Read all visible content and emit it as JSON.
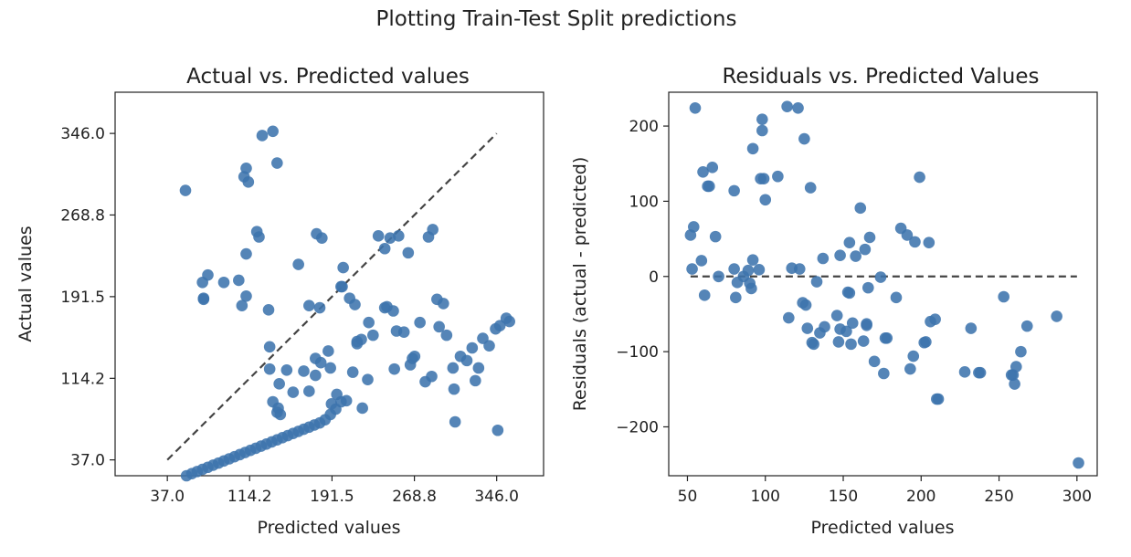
{
  "figure": {
    "suptitle": "Plotting Train-Test Split predictions"
  },
  "colors": {
    "points": "#3e74ad",
    "reference_line": "#444444",
    "axes": "#222222"
  },
  "chart_data": [
    {
      "type": "scatter",
      "title": "Actual vs. Predicted values",
      "xlabel": "Predicted values",
      "ylabel": "Actual values",
      "xlim": [
        -12,
        390
      ],
      "ylim": [
        22,
        385
      ],
      "xticks": [
        37.0,
        114.2,
        191.5,
        268.8,
        346.0
      ],
      "yticks": [
        37.0,
        114.2,
        191.5,
        268.8,
        346.0
      ],
      "xtick_labels": [
        "37.0",
        "114.2",
        "191.5",
        "268.8",
        "346.0"
      ],
      "ytick_labels": [
        "37.0",
        "114.2",
        "191.5",
        "268.8",
        "346.0"
      ],
      "reference_line": {
        "style": "dashed",
        "from": [
          37.0,
          37.0
        ],
        "to": [
          346.0,
          346.0
        ]
      },
      "points": [
        [
          54,
          292
        ],
        [
          70,
          205
        ],
        [
          75,
          212
        ],
        [
          71,
          190
        ],
        [
          71,
          189
        ],
        [
          90,
          205
        ],
        [
          104,
          207
        ],
        [
          107,
          183
        ],
        [
          111,
          192
        ],
        [
          111,
          232
        ],
        [
          123,
          248
        ],
        [
          132,
          179
        ],
        [
          133,
          144
        ],
        [
          133,
          123
        ],
        [
          136,
          92
        ],
        [
          141,
          86
        ],
        [
          143,
          80
        ],
        [
          140,
          82
        ],
        [
          109,
          305
        ],
        [
          113,
          300
        ],
        [
          111,
          313
        ],
        [
          121,
          253
        ],
        [
          126,
          344
        ],
        [
          136,
          348
        ],
        [
          140,
          318
        ],
        [
          142,
          109
        ],
        [
          149,
          122
        ],
        [
          155,
          101
        ],
        [
          160,
          222
        ],
        [
          165,
          121
        ],
        [
          170,
          102
        ],
        [
          177,
          251
        ],
        [
          170,
          183
        ],
        [
          176,
          133
        ],
        [
          176,
          117
        ],
        [
          181,
          129
        ],
        [
          180,
          181
        ],
        [
          182,
          247
        ],
        [
          188,
          140
        ],
        [
          191,
          90
        ],
        [
          190,
          124
        ],
        [
          196,
          99
        ],
        [
          200,
          201
        ],
        [
          202,
          219
        ],
        [
          201,
          201
        ],
        [
          208,
          190
        ],
        [
          213,
          184
        ],
        [
          215,
          149
        ],
        [
          220,
          86
        ],
        [
          225,
          113
        ],
        [
          230,
          155
        ],
        [
          235,
          249
        ],
        [
          241,
          181
        ],
        [
          243,
          182
        ],
        [
          249,
          178
        ],
        [
          250,
          123
        ],
        [
          252,
          159
        ],
        [
          254,
          249
        ],
        [
          259,
          158
        ],
        [
          265,
          127
        ],
        [
          267,
          133
        ],
        [
          269,
          135
        ],
        [
          274,
          167
        ],
        [
          279,
          111
        ],
        [
          285,
          116
        ],
        [
          290,
          189
        ],
        [
          296,
          185
        ],
        [
          305,
          124
        ],
        [
          306,
          104
        ],
        [
          312,
          135
        ],
        [
          318,
          131
        ],
        [
          323,
          143
        ],
        [
          326,
          112
        ],
        [
          329,
          124
        ],
        [
          333,
          152
        ],
        [
          339,
          145
        ],
        [
          345,
          161
        ],
        [
          349,
          164
        ],
        [
          355,
          171
        ],
        [
          358,
          168
        ],
        [
          347,
          65
        ],
        [
          307,
          73
        ],
        [
          292,
          163
        ],
        [
          299,
          155
        ],
        [
          286,
          255
        ],
        [
          282,
          248
        ],
        [
          263,
          233
        ],
        [
          246,
          247
        ],
        [
          241,
          237
        ],
        [
          226,
          167
        ],
        [
          219,
          151
        ],
        [
          215,
          147
        ],
        [
          211,
          120
        ],
        [
          205,
          93
        ],
        [
          200,
          92
        ],
        [
          195,
          85
        ],
        [
          190,
          80
        ],
        [
          185,
          75
        ],
        [
          180,
          72
        ],
        [
          175,
          70
        ],
        [
          170,
          68
        ],
        [
          165,
          66
        ],
        [
          160,
          64
        ],
        [
          155,
          62
        ],
        [
          150,
          60
        ],
        [
          145,
          58
        ],
        [
          140,
          56
        ],
        [
          135,
          54
        ],
        [
          130,
          52
        ],
        [
          125,
          50
        ],
        [
          120,
          48
        ],
        [
          115,
          46
        ],
        [
          110,
          44
        ],
        [
          105,
          42
        ],
        [
          100,
          40
        ],
        [
          95,
          38
        ],
        [
          90,
          36
        ],
        [
          85,
          34
        ],
        [
          80,
          32
        ],
        [
          75,
          30
        ],
        [
          70,
          28
        ],
        [
          65,
          26
        ],
        [
          60,
          24
        ],
        [
          55,
          22
        ],
        [
          50,
          20
        ],
        [
          45,
          18
        ],
        [
          40,
          16
        ],
        [
          35,
          14
        ],
        [
          30,
          12
        ],
        [
          25,
          10
        ],
        [
          20,
          8
        ],
        [
          15,
          6
        ],
        [
          10,
          4
        ],
        [
          5,
          2
        ]
      ]
    },
    {
      "type": "scatter",
      "title": "Residuals vs. Predicted Values",
      "xlabel": "Predicted values",
      "ylabel": "Residuals (actual - predicted)",
      "xlim": [
        38,
        313
      ],
      "ylim": [
        -265,
        245
      ],
      "xticks": [
        50,
        100,
        150,
        200,
        250,
        300
      ],
      "yticks": [
        -200,
        -100,
        0,
        100,
        200
      ],
      "xtick_labels": [
        "50",
        "100",
        "150",
        "200",
        "250",
        "300"
      ],
      "ytick_labels": [
        "−200",
        "−100",
        "0",
        "100",
        "200"
      ],
      "reference_line": {
        "style": "dashed",
        "from": [
          52,
          0
        ],
        "to": [
          300,
          0
        ]
      },
      "points": [
        [
          52,
          55
        ],
        [
          53,
          10
        ],
        [
          54,
          66
        ],
        [
          55,
          224
        ],
        [
          59,
          21
        ],
        [
          60,
          139
        ],
        [
          61,
          -25
        ],
        [
          63,
          120
        ],
        [
          64,
          120
        ],
        [
          66,
          145
        ],
        [
          68,
          53
        ],
        [
          70,
          0
        ],
        [
          80,
          10
        ],
        [
          80,
          114
        ],
        [
          81,
          -28
        ],
        [
          82,
          -8
        ],
        [
          86,
          0
        ],
        [
          89,
          8
        ],
        [
          90,
          -9
        ],
        [
          91,
          -16
        ],
        [
          92,
          22
        ],
        [
          92,
          170
        ],
        [
          96,
          9
        ],
        [
          97,
          130
        ],
        [
          98,
          209
        ],
        [
          98,
          194
        ],
        [
          99,
          130
        ],
        [
          100,
          102
        ],
        [
          108,
          133
        ],
        [
          114,
          226
        ],
        [
          115,
          -55
        ],
        [
          117,
          11
        ],
        [
          121,
          224
        ],
        [
          122,
          10
        ],
        [
          124,
          -35
        ],
        [
          125,
          183
        ],
        [
          126,
          -38
        ],
        [
          127,
          -69
        ],
        [
          129,
          118
        ],
        [
          130,
          -88
        ],
        [
          131,
          -90
        ],
        [
          133,
          -7
        ],
        [
          135,
          -75
        ],
        [
          137,
          24
        ],
        [
          138,
          -67
        ],
        [
          146,
          -52
        ],
        [
          147,
          -87
        ],
        [
          148,
          -70
        ],
        [
          148,
          28
        ],
        [
          152,
          -73
        ],
        [
          153,
          -21
        ],
        [
          154,
          45
        ],
        [
          154,
          -22
        ],
        [
          155,
          -90
        ],
        [
          156,
          -62
        ],
        [
          158,
          27
        ],
        [
          161,
          91
        ],
        [
          163,
          -86
        ],
        [
          164,
          36
        ],
        [
          165,
          -63
        ],
        [
          165,
          -65
        ],
        [
          166,
          -15
        ],
        [
          167,
          52
        ],
        [
          170,
          -113
        ],
        [
          174,
          -1
        ],
        [
          176,
          -129
        ],
        [
          177,
          -82
        ],
        [
          178,
          -82
        ],
        [
          184,
          -28
        ],
        [
          187,
          64
        ],
        [
          191,
          55
        ],
        [
          193,
          -123
        ],
        [
          195,
          -106
        ],
        [
          196,
          46
        ],
        [
          199,
          132
        ],
        [
          202,
          -88
        ],
        [
          203,
          -87
        ],
        [
          205,
          45
        ],
        [
          206,
          -60
        ],
        [
          209,
          -57
        ],
        [
          210,
          -163
        ],
        [
          211,
          -163
        ],
        [
          228,
          -127
        ],
        [
          232,
          -69
        ],
        [
          237,
          -128
        ],
        [
          238,
          -128
        ],
        [
          253,
          -27
        ],
        [
          258,
          -131
        ],
        [
          259,
          -131
        ],
        [
          260,
          -143
        ],
        [
          261,
          -120
        ],
        [
          264,
          -100
        ],
        [
          268,
          -66
        ],
        [
          287,
          -53
        ],
        [
          301,
          -248
        ]
      ]
    }
  ]
}
